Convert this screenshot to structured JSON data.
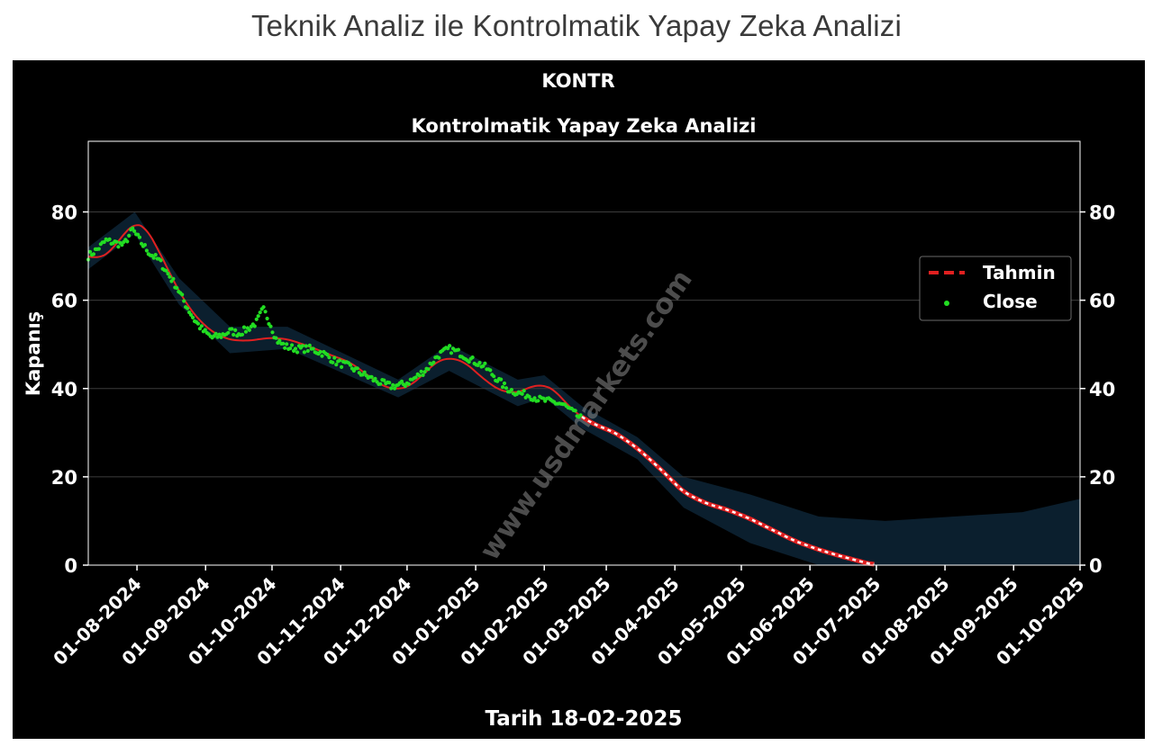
{
  "page": {
    "heading": "Teknik Analiz ile Kontrolmatik Yapay Zeka Analizi"
  },
  "chart_data": {
    "type": "line",
    "ticker": "KONTR",
    "title": "Kontrolmatik Yapay Zeka Analizi",
    "xlabel": "Tarih 18-02-2025",
    "ylabel": "Kapanış",
    "watermark": "www.usdmarkets.com",
    "xlim": [
      "2024-07-10",
      "2025-10-01"
    ],
    "ylim": [
      0,
      96
    ],
    "x_ticks": [
      "01-08-2024",
      "01-09-2024",
      "01-10-2024",
      "01-11-2024",
      "01-12-2024",
      "01-01-2025",
      "01-02-2025",
      "01-03-2025",
      "01-04-2025",
      "01-05-2025",
      "01-06-2025",
      "01-07-2025",
      "01-08-2025",
      "01-09-2025",
      "01-10-2025"
    ],
    "y_ticks": [
      0,
      20,
      40,
      60,
      80
    ],
    "y_ticks_right": [
      0,
      20,
      40,
      60,
      80
    ],
    "grid": "horizontal",
    "legend_position": "right",
    "background": "#000000",
    "colors": {
      "tahmin": "#e02020",
      "close": "#22dd22",
      "band": "#0c2233",
      "axis": "#ffffff"
    },
    "legend": [
      {
        "label": "Tahmin",
        "style": "dashed-line"
      },
      {
        "label": "Close",
        "style": "dot"
      }
    ],
    "series": [
      {
        "name": "Tahmin",
        "points": [
          [
            "2024-07-10",
            70
          ],
          [
            "2024-07-15",
            69.5
          ],
          [
            "2024-07-20",
            71
          ],
          [
            "2024-07-26",
            75
          ],
          [
            "2024-07-31",
            77.5
          ],
          [
            "2024-08-05",
            76.5
          ],
          [
            "2024-08-10",
            72
          ],
          [
            "2024-08-15",
            67
          ],
          [
            "2024-08-20",
            62
          ],
          [
            "2024-08-25",
            58
          ],
          [
            "2024-08-30",
            55
          ],
          [
            "2024-09-05",
            52.5
          ],
          [
            "2024-09-12",
            51
          ],
          [
            "2024-09-20",
            50.8
          ],
          [
            "2024-09-30",
            51.5
          ],
          [
            "2024-10-08",
            51.2
          ],
          [
            "2024-10-18",
            49.5
          ],
          [
            "2024-10-28",
            47.5
          ],
          [
            "2024-11-05",
            46
          ],
          [
            "2024-11-12",
            43.5
          ],
          [
            "2024-11-20",
            40.5
          ],
          [
            "2024-11-27",
            39.8
          ],
          [
            "2024-12-02",
            40.5
          ],
          [
            "2024-12-08",
            43
          ],
          [
            "2024-12-14",
            46
          ],
          [
            "2024-12-20",
            47
          ],
          [
            "2024-12-27",
            46
          ],
          [
            "2025-01-05",
            42
          ],
          [
            "2025-01-12",
            39.5
          ],
          [
            "2025-01-20",
            39
          ],
          [
            "2025-01-26",
            40.5
          ],
          [
            "2025-02-01",
            40.8
          ],
          [
            "2025-02-06",
            39.5
          ],
          [
            "2025-02-12",
            36
          ],
          [
            "2025-02-18",
            33.5
          ],
          [
            "2025-02-24",
            31.8
          ],
          [
            "2025-03-05",
            30
          ],
          [
            "2025-03-15",
            26.5
          ],
          [
            "2025-03-25",
            22
          ],
          [
            "2025-04-05",
            16.5
          ],
          [
            "2025-04-15",
            14
          ],
          [
            "2025-04-25",
            12.5
          ],
          [
            "2025-05-05",
            10.5
          ],
          [
            "2025-05-15",
            8
          ],
          [
            "2025-05-25",
            5.5
          ],
          [
            "2025-06-05",
            3.5
          ],
          [
            "2025-06-15",
            2
          ],
          [
            "2025-06-25",
            0.7
          ],
          [
            "2025-06-30",
            0
          ]
        ]
      },
      {
        "name": "Close",
        "points": [
          [
            "2024-07-10",
            70
          ],
          [
            "2024-07-14",
            71.5
          ],
          [
            "2024-07-18",
            73.5
          ],
          [
            "2024-07-22",
            73
          ],
          [
            "2024-07-26",
            72.5
          ],
          [
            "2024-07-30",
            76
          ],
          [
            "2024-08-03",
            73
          ],
          [
            "2024-08-07",
            70.5
          ],
          [
            "2024-08-11",
            69
          ],
          [
            "2024-08-15",
            66
          ],
          [
            "2024-08-19",
            63
          ],
          [
            "2024-08-23",
            59
          ],
          [
            "2024-08-27",
            55.5
          ],
          [
            "2024-08-31",
            53
          ],
          [
            "2024-09-04",
            51.5
          ],
          [
            "2024-09-08",
            52
          ],
          [
            "2024-09-12",
            53
          ],
          [
            "2024-09-16",
            52.5
          ],
          [
            "2024-09-20",
            53.5
          ],
          [
            "2024-09-24",
            55
          ],
          [
            "2024-09-27",
            58
          ],
          [
            "2024-09-30",
            55
          ],
          [
            "2024-10-03",
            51
          ],
          [
            "2024-10-07",
            49.5
          ],
          [
            "2024-10-12",
            49
          ],
          [
            "2024-10-18",
            49
          ],
          [
            "2024-10-24",
            48
          ],
          [
            "2024-10-30",
            46
          ],
          [
            "2024-11-05",
            45
          ],
          [
            "2024-11-12",
            43
          ],
          [
            "2024-11-18",
            41.5
          ],
          [
            "2024-11-24",
            40.5
          ],
          [
            "2024-11-30",
            41
          ],
          [
            "2024-12-05",
            42.5
          ],
          [
            "2024-12-10",
            44.5
          ],
          [
            "2024-12-15",
            47.5
          ],
          [
            "2024-12-20",
            49
          ],
          [
            "2024-12-25",
            48
          ],
          [
            "2024-12-30",
            46.5
          ],
          [
            "2025-01-05",
            45
          ],
          [
            "2025-01-10",
            42.5
          ],
          [
            "2025-01-15",
            40
          ],
          [
            "2025-01-20",
            39
          ],
          [
            "2025-01-25",
            38.5
          ],
          [
            "2025-01-30",
            37.5
          ],
          [
            "2025-02-04",
            37
          ],
          [
            "2025-02-09",
            36.5
          ],
          [
            "2025-02-13",
            35
          ],
          [
            "2025-02-18",
            33
          ]
        ]
      }
    ],
    "uncertainty_band": {
      "x": [
        "2024-07-10",
        "2024-07-31",
        "2024-08-20",
        "2024-09-12",
        "2024-10-08",
        "2024-11-27",
        "2024-12-20",
        "2025-01-20",
        "2025-02-01",
        "2025-02-18",
        "2025-03-15",
        "2025-04-05",
        "2025-05-05",
        "2025-06-05",
        "2025-07-05",
        "2025-08-05",
        "2025-09-05",
        "2025-10-01"
      ],
      "upper": [
        72,
        80,
        65,
        54,
        54,
        42,
        50,
        42,
        43,
        36,
        29,
        20,
        16,
        11,
        10,
        11,
        12,
        15
      ],
      "lower": [
        67,
        75,
        59,
        48,
        49,
        38,
        44,
        36,
        38,
        31,
        24,
        13,
        5,
        0,
        0,
        0,
        0,
        0
      ]
    }
  }
}
